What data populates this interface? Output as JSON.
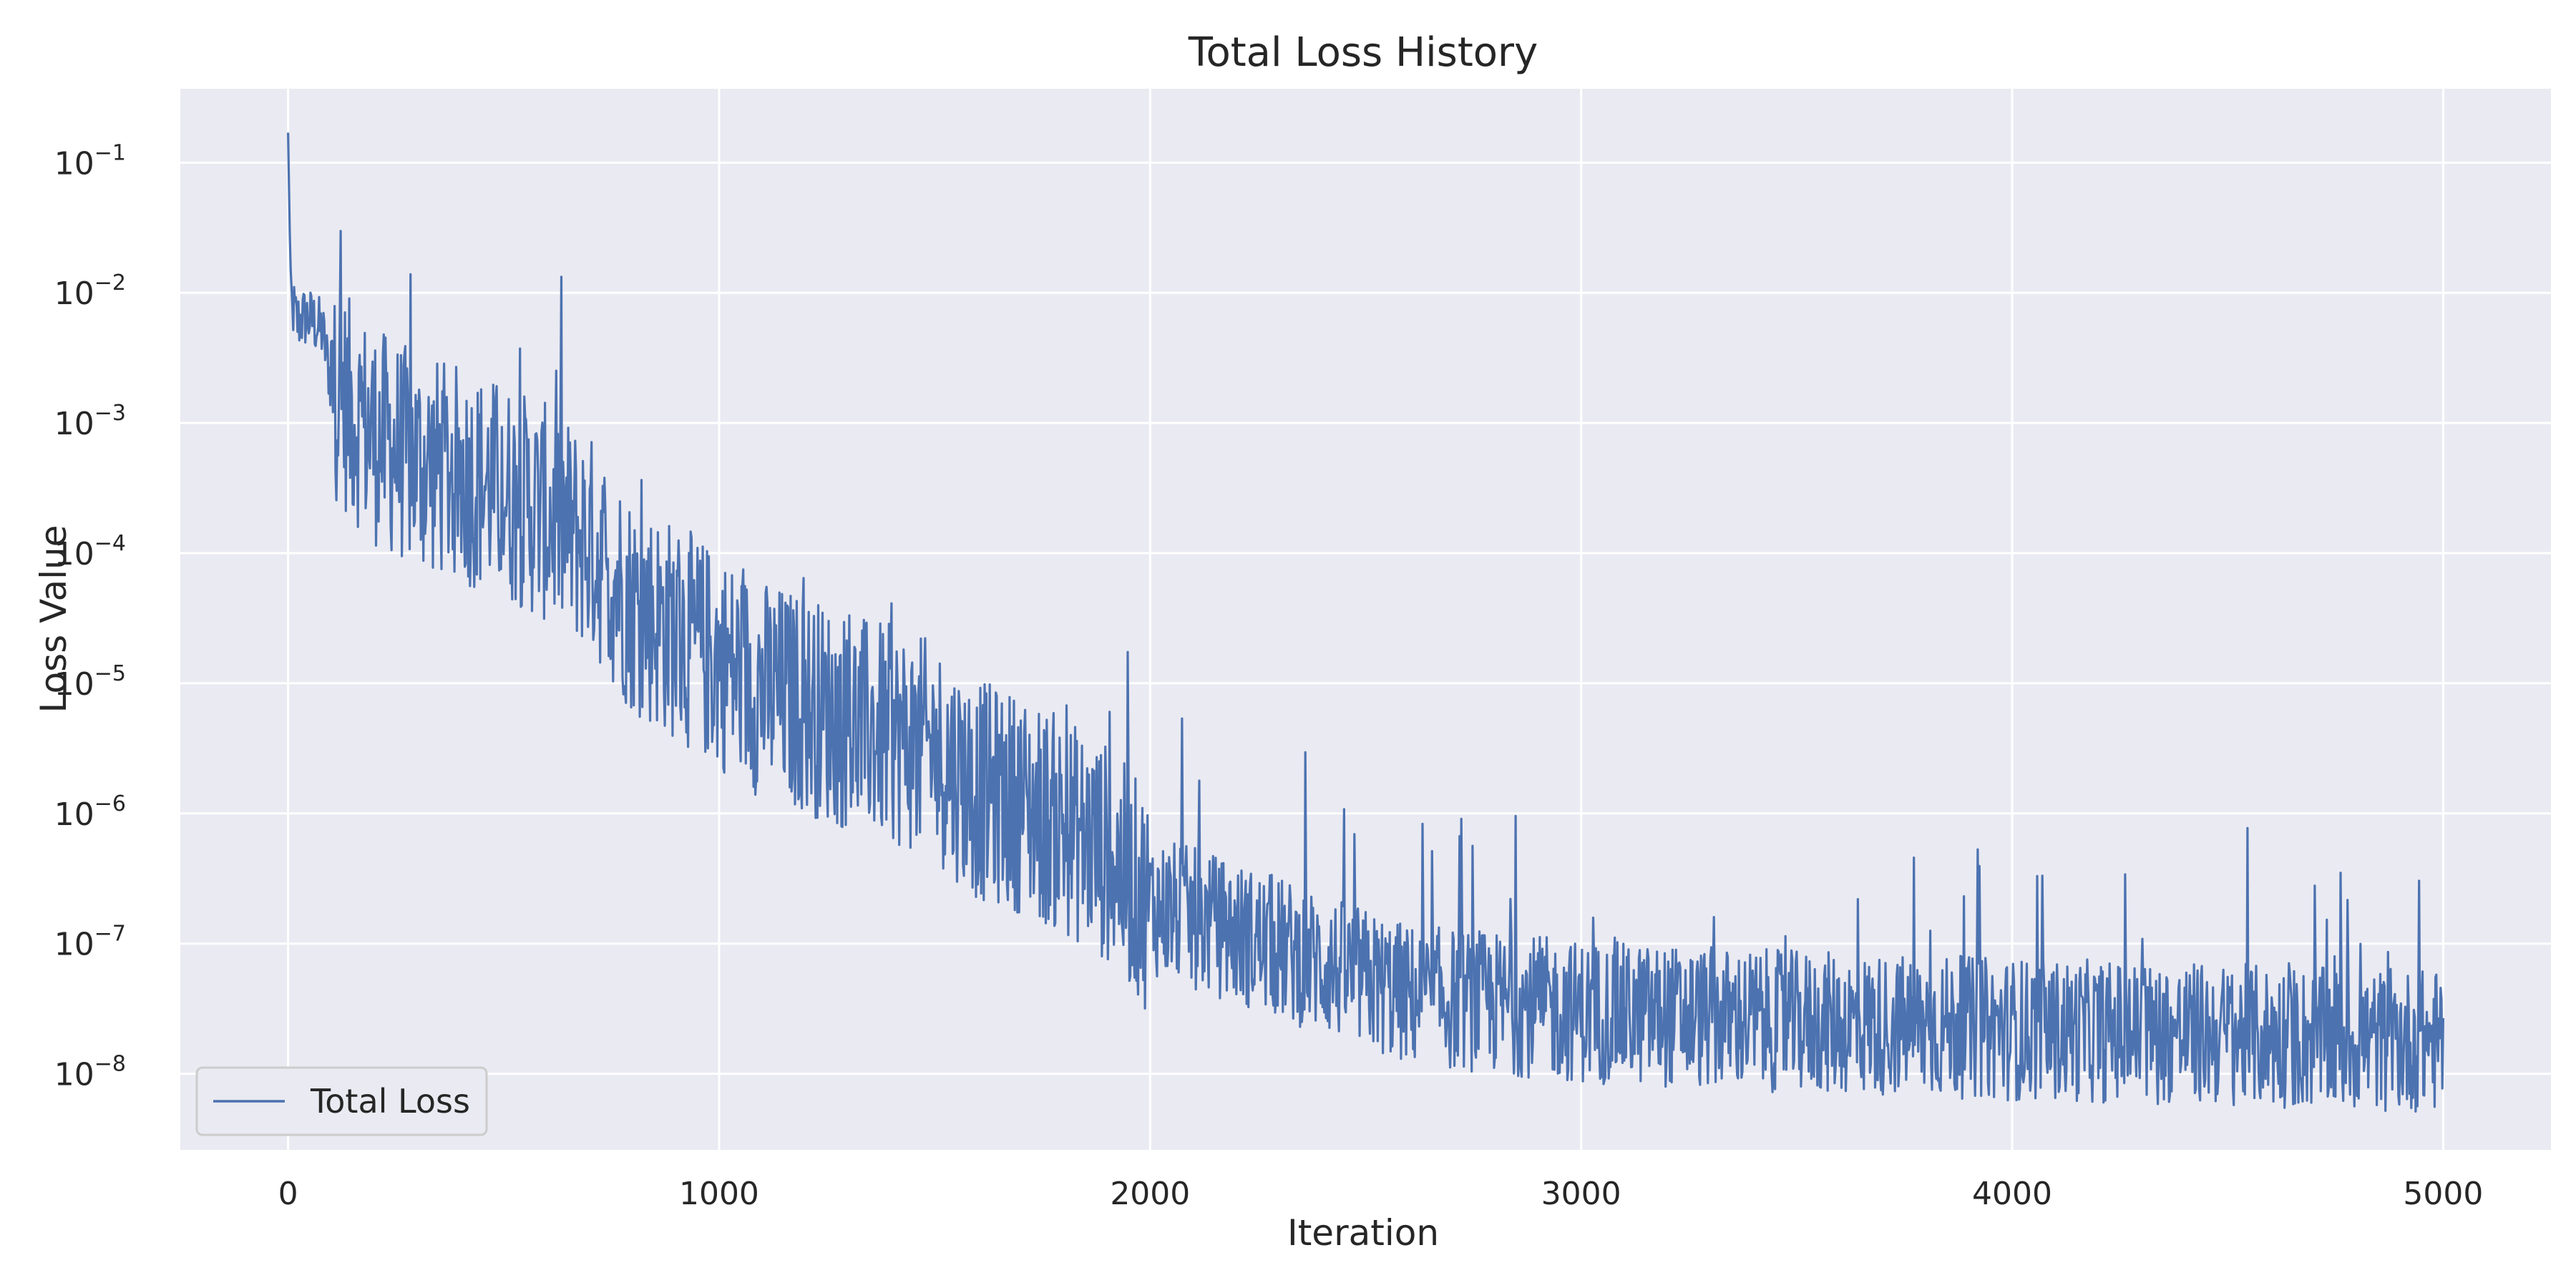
{
  "chart_data": {
    "type": "line",
    "title": "Total Loss History",
    "xlabel": "Iteration",
    "ylabel": "Loss Value",
    "x_ticks": [
      0,
      1000,
      2000,
      3000,
      4000,
      5000
    ],
    "y_ticks": [
      {
        "value": 1e-08,
        "base": "10",
        "exp": "−8"
      },
      {
        "value": 1e-07,
        "base": "10",
        "exp": "−7"
      },
      {
        "value": 1e-06,
        "base": "10",
        "exp": "−6"
      },
      {
        "value": 1e-05,
        "base": "10",
        "exp": "−5"
      },
      {
        "value": 0.0001,
        "base": "10",
        "exp": "−4"
      },
      {
        "value": 0.001,
        "base": "10",
        "exp": "−3"
      },
      {
        "value": 0.01,
        "base": "10",
        "exp": "−2"
      },
      {
        "value": 0.1,
        "base": "10",
        "exp": "−1"
      }
    ],
    "xlim": [
      -250,
      5250
    ],
    "ylim": [
      2.6e-09,
      0.37
    ],
    "y_scale": "log",
    "grid": true,
    "legend": {
      "position": "lower-left",
      "entries": [
        "Total Loss"
      ]
    },
    "colors": {
      "plot_bg": "#eaeaf2",
      "grid": "#ffffff",
      "series": "#4c72b0",
      "legend_border": "#cccccc"
    },
    "series": [
      {
        "name": "Total Loss",
        "x": [
          0,
          5,
          10,
          20,
          40,
          60,
          80,
          100,
          150,
          200,
          300,
          400,
          500,
          600,
          700,
          800,
          900,
          1000,
          1100,
          1200,
          1300,
          1400,
          1500,
          1600,
          1700,
          1800,
          1900,
          2000,
          2200,
          2400,
          2600,
          2800,
          3000,
          3500,
          4000,
          4500,
          4800,
          5000
        ],
        "y": [
          0.17,
          0.018,
          0.008,
          0.006,
          0.0065,
          0.006,
          0.005,
          0.002,
          0.0012,
          0.0008,
          0.0005,
          0.0004,
          0.0003,
          0.0002,
          0.00012,
          4e-05,
          2.5e-05,
          1.5e-05,
          9e-06,
          7e-06,
          5e-06,
          4e-06,
          3e-06,
          1.5e-06,
          1.2e-06,
          8e-07,
          5e-07,
          2e-07,
          1.2e-07,
          7e-08,
          4e-08,
          3.5e-08,
          3e-08,
          2.5e-08,
          2.2e-08,
          2e-08,
          1.8e-08,
          1.8e-08
        ]
      }
    ]
  }
}
